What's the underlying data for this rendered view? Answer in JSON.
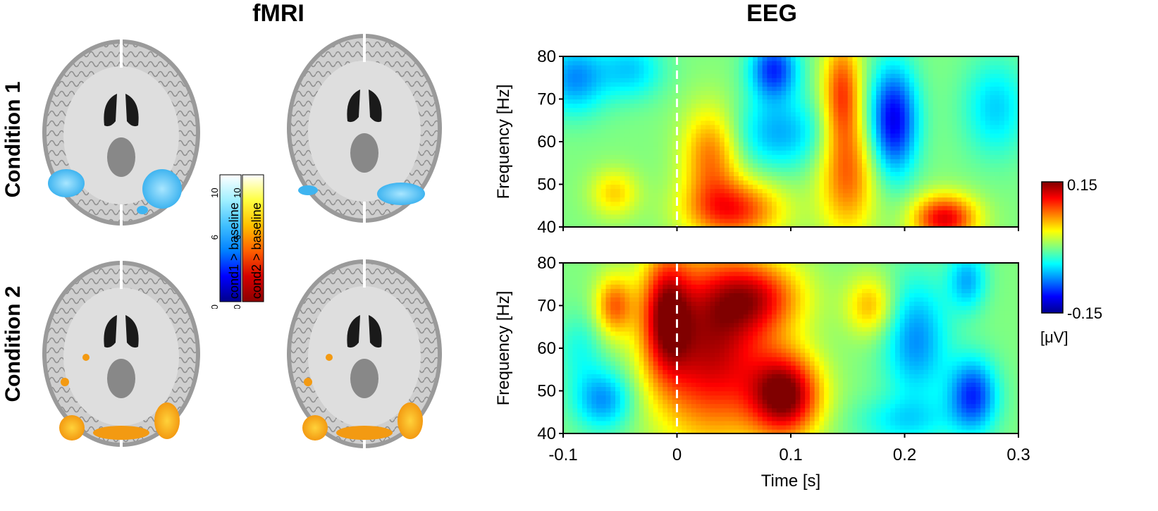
{
  "figure": {
    "fmri_heading": "fMRI",
    "eeg_heading": "EEG"
  },
  "fmri": {
    "conditions": [
      {
        "label": "Condition 1",
        "activation_color": "#3fb4f0",
        "activation_core": "#a8e6ff"
      },
      {
        "label": "Condition 2",
        "activation_color": "#f39a12",
        "activation_core": "#ffd23a"
      }
    ],
    "colorbars": [
      {
        "label": "cond1 > baseline",
        "ticks": [
          "0",
          "6",
          "10"
        ],
        "colormap": [
          "#00008b",
          "#0000ff",
          "#0080ff",
          "#40c0ff",
          "#a0f0ff",
          "#ffffff"
        ]
      },
      {
        "label": "cond2 > baseline",
        "ticks": [
          "0",
          "6",
          "10"
        ],
        "colormap": [
          "#8b0000",
          "#d40000",
          "#ff6000",
          "#ffc000",
          "#ffff40",
          "#ffffff"
        ]
      }
    ]
  },
  "eeg": {
    "ylabel": "Frequency [Hz]",
    "xlabel": "Time [s]",
    "xticks": [
      "-0.1",
      "0",
      "0.1",
      "0.2",
      "0.3"
    ],
    "yticks": [
      "40",
      "50",
      "60",
      "70",
      "80"
    ],
    "colorbar": {
      "max": "0.15",
      "min": "-0.15",
      "unit": "[μV]"
    },
    "colormap": [
      "#00008f",
      "#0000ff",
      "#0080ff",
      "#00ffff",
      "#80ff80",
      "#ffff00",
      "#ff8000",
      "#ff0000",
      "#800000"
    ]
  },
  "chart_data": [
    {
      "type": "heatmap",
      "title": "",
      "xlabel": "",
      "ylabel": "Frequency [Hz]",
      "xlim": [
        -0.1,
        0.3
      ],
      "ylim": [
        40,
        80
      ],
      "event_marker_x": 0,
      "value_range": [
        -0.15,
        0.15
      ],
      "unit": "μV",
      "blobs": [
        {
          "x": 0.05,
          "y": 44,
          "value": 0.1,
          "sx": 0.03,
          "sy": 5
        },
        {
          "x": 0.03,
          "y": 57,
          "value": 0.08,
          "sx": 0.018,
          "sy": 8
        },
        {
          "x": 0.145,
          "y": 72,
          "value": 0.09,
          "sx": 0.012,
          "sy": 9
        },
        {
          "x": 0.15,
          "y": 52,
          "value": 0.08,
          "sx": 0.018,
          "sy": 10
        },
        {
          "x": 0.235,
          "y": 42,
          "value": 0.12,
          "sx": 0.02,
          "sy": 4
        },
        {
          "x": -0.055,
          "y": 48,
          "value": 0.05,
          "sx": 0.015,
          "sy": 4
        },
        {
          "x": 0.085,
          "y": 77,
          "value": -0.1,
          "sx": 0.015,
          "sy": 5
        },
        {
          "x": 0.19,
          "y": 65,
          "value": -0.12,
          "sx": 0.015,
          "sy": 9
        },
        {
          "x": -0.09,
          "y": 75,
          "value": -0.07,
          "sx": 0.02,
          "sy": 6
        },
        {
          "x": 0.09,
          "y": 62,
          "value": -0.06,
          "sx": 0.03,
          "sy": 6
        },
        {
          "x": -0.04,
          "y": 77,
          "value": -0.05,
          "sx": 0.02,
          "sy": 5
        },
        {
          "x": 0.28,
          "y": 68,
          "value": -0.05,
          "sx": 0.02,
          "sy": 8
        }
      ]
    },
    {
      "type": "heatmap",
      "title": "",
      "xlabel": "Time [s]",
      "ylabel": "Frequency [Hz]",
      "xlim": [
        -0.1,
        0.3
      ],
      "ylim": [
        40,
        80
      ],
      "event_marker_x": 0,
      "value_range": [
        -0.15,
        0.15
      ],
      "unit": "μV",
      "blobs": [
        {
          "x": 0.095,
          "y": 49,
          "value": 0.15,
          "sx": 0.022,
          "sy": 7
        },
        {
          "x": 0.03,
          "y": 60,
          "value": 0.13,
          "sx": 0.035,
          "sy": 15
        },
        {
          "x": -0.01,
          "y": 68,
          "value": 0.11,
          "sx": 0.015,
          "sy": 10
        },
        {
          "x": 0.07,
          "y": 72,
          "value": 0.09,
          "sx": 0.03,
          "sy": 6
        },
        {
          "x": 0.17,
          "y": 70,
          "value": 0.06,
          "sx": 0.015,
          "sy": 5
        },
        {
          "x": -0.055,
          "y": 70,
          "value": 0.08,
          "sx": 0.012,
          "sy": 5
        },
        {
          "x": 0.26,
          "y": 49,
          "value": -0.1,
          "sx": 0.015,
          "sy": 6
        },
        {
          "x": 0.21,
          "y": 62,
          "value": -0.07,
          "sx": 0.02,
          "sy": 10
        },
        {
          "x": 0.255,
          "y": 76,
          "value": -0.06,
          "sx": 0.012,
          "sy": 5
        },
        {
          "x": -0.065,
          "y": 48,
          "value": -0.07,
          "sx": 0.018,
          "sy": 5
        },
        {
          "x": -0.085,
          "y": 60,
          "value": -0.03,
          "sx": 0.015,
          "sy": 6
        },
        {
          "x": 0.2,
          "y": 43,
          "value": -0.04,
          "sx": 0.03,
          "sy": 4
        }
      ]
    }
  ]
}
